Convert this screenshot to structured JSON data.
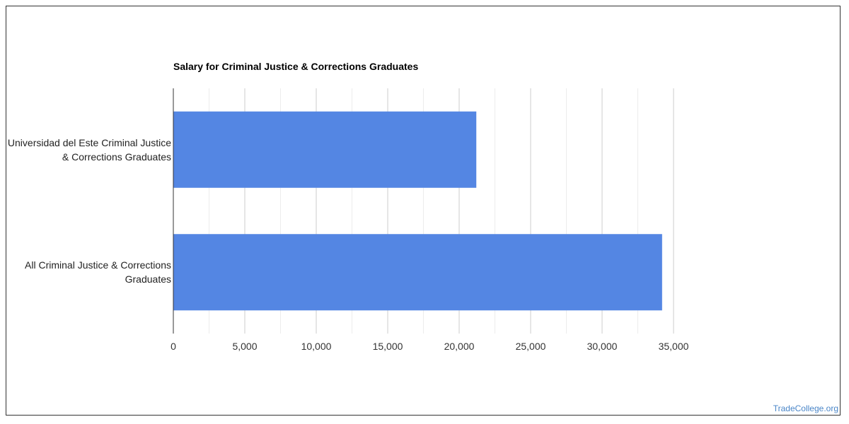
{
  "chart_data": {
    "type": "bar",
    "orientation": "horizontal",
    "title": "Salary for Criminal Justice & Corrections Graduates",
    "categories": [
      "Universidad del Este Criminal Justice & Corrections Graduates",
      "All Criminal Justice & Corrections Graduates"
    ],
    "values": [
      21200,
      34200
    ],
    "xlim": [
      0,
      35000
    ],
    "x_ticks": [
      "0",
      "5,000",
      "10,000",
      "15,000",
      "20,000",
      "25,000",
      "30,000",
      "35,000"
    ],
    "tick_values": [
      0,
      5000,
      10000,
      15000,
      20000,
      25000,
      30000,
      35000
    ],
    "grid": true,
    "bar_color": "#5486e3"
  },
  "watermark": "TradeCollege.org"
}
